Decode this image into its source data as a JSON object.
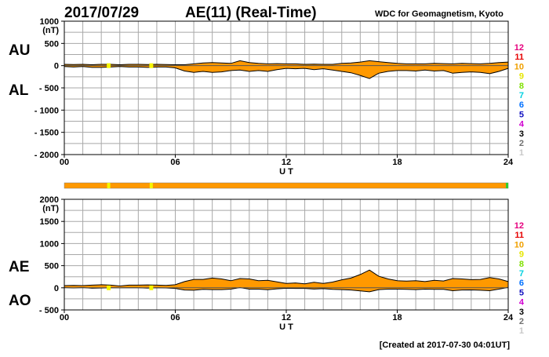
{
  "header": {
    "date": "2017/07/29",
    "title": "AE(11) (Real-Time)",
    "source": "WDC for Geomagnetism, Kyoto",
    "created": "[Created at 2017-07-30 04:01UT]"
  },
  "colors": {
    "fill": "#ff9900",
    "grid": "#a8a8a8",
    "marker_yellow": "#f5f500",
    "marker_green": "#33cc33"
  },
  "legend": {
    "items": [
      {
        "label": "12",
        "color": "#e6007e"
      },
      {
        "label": "11",
        "color": "#e60000"
      },
      {
        "label": "10",
        "color": "#f0a000"
      },
      {
        "label": "9",
        "color": "#e6e600"
      },
      {
        "label": "8",
        "color": "#80e000"
      },
      {
        "label": "7",
        "color": "#00d0e0"
      },
      {
        "label": "6",
        "color": "#0070ff"
      },
      {
        "label": "5",
        "color": "#1010c0"
      },
      {
        "label": "4",
        "color": "#d000d0"
      },
      {
        "label": "3",
        "color": "#000000"
      },
      {
        "label": "2",
        "color": "#707070"
      },
      {
        "label": "1",
        "color": "#c8c8c8"
      }
    ]
  },
  "station_bar": {
    "color": "#ff9900",
    "markers": [
      {
        "hour": 2.4,
        "color": "#f5f500"
      },
      {
        "hour": 4.7,
        "color": "#f5f500"
      },
      {
        "hour": 24.0,
        "color": "#33cc33"
      }
    ]
  },
  "chart_data": [
    {
      "type": "area",
      "name": "AU/AL",
      "unit": "(nT)",
      "xlabel": "U T",
      "xlim": [
        0,
        24
      ],
      "x_ticks": [
        "00",
        "06",
        "12",
        "18",
        "24"
      ],
      "ylim": [
        -2000,
        1000
      ],
      "y_ticks": [
        {
          "v": 1000,
          "label": "1000"
        },
        {
          "v": 500,
          "label": "500"
        },
        {
          "v": 0,
          "label": "0"
        },
        {
          "v": -500,
          "label": "- 500"
        },
        {
          "v": -1000,
          "label": "- 1000"
        },
        {
          "v": -1500,
          "label": "- 1500"
        },
        {
          "v": -2000,
          "label": "- 2000"
        }
      ],
      "label_upper": "AU",
      "label_lower": "AL",
      "grid": true,
      "hours": [
        0,
        0.5,
        1,
        1.5,
        2,
        2.5,
        3,
        3.5,
        4,
        4.5,
        5,
        5.5,
        6,
        6.5,
        7,
        7.5,
        8,
        8.5,
        9,
        9.5,
        10,
        10.5,
        11,
        11.5,
        12,
        12.5,
        13,
        13.5,
        14,
        14.5,
        15,
        15.5,
        16,
        16.5,
        17,
        17.5,
        18,
        18.5,
        19,
        19.5,
        20,
        20.5,
        21,
        21.5,
        22,
        22.5,
        23,
        23.5,
        24
      ],
      "series": [
        {
          "name": "AU",
          "values": [
            30,
            25,
            30,
            20,
            30,
            30,
            20,
            30,
            30,
            25,
            30,
            25,
            20,
            20,
            40,
            60,
            70,
            60,
            50,
            110,
            70,
            50,
            40,
            45,
            40,
            40,
            30,
            35,
            30,
            30,
            50,
            60,
            80,
            110,
            90,
            70,
            50,
            40,
            40,
            40,
            50,
            45,
            40,
            50,
            45,
            40,
            50,
            70,
            80
          ]
        },
        {
          "name": "AL",
          "values": [
            -20,
            -30,
            -20,
            -40,
            -40,
            -30,
            -20,
            -30,
            -30,
            -40,
            -30,
            -30,
            -50,
            -120,
            -150,
            -130,
            -150,
            -140,
            -110,
            -100,
            -130,
            -110,
            -130,
            -90,
            -60,
            -70,
            -60,
            -90,
            -70,
            -100,
            -130,
            -160,
            -220,
            -290,
            -170,
            -130,
            -110,
            -110,
            -120,
            -100,
            -120,
            -110,
            -170,
            -150,
            -140,
            -150,
            -180,
            -130,
            -60
          ]
        }
      ]
    },
    {
      "type": "area",
      "name": "AE/AO",
      "unit": "(nT)",
      "xlabel": "U T",
      "xlim": [
        0,
        24
      ],
      "x_ticks": [
        "00",
        "06",
        "12",
        "18",
        "24"
      ],
      "ylim": [
        -500,
        2000
      ],
      "y_ticks": [
        {
          "v": 2000,
          "label": "2000"
        },
        {
          "v": 1500,
          "label": "1500"
        },
        {
          "v": 1000,
          "label": "1000"
        },
        {
          "v": 500,
          "label": "500"
        },
        {
          "v": 0,
          "label": "0"
        },
        {
          "v": -500,
          "label": "- 500"
        }
      ],
      "label_upper": "AE",
      "label_lower": "AO",
      "grid": true,
      "hours": [
        0,
        0.5,
        1,
        1.5,
        2,
        2.5,
        3,
        3.5,
        4,
        4.5,
        5,
        5.5,
        6,
        6.5,
        7,
        7.5,
        8,
        8.5,
        9,
        9.5,
        10,
        10.5,
        11,
        11.5,
        12,
        12.5,
        13,
        13.5,
        14,
        14.5,
        15,
        15.5,
        16,
        16.5,
        17,
        17.5,
        18,
        18.5,
        19,
        19.5,
        20,
        20.5,
        21,
        21.5,
        22,
        22.5,
        23,
        23.5,
        24
      ],
      "series": [
        {
          "name": "AE",
          "values": [
            50,
            55,
            50,
            60,
            70,
            60,
            40,
            60,
            60,
            65,
            60,
            55,
            70,
            140,
            190,
            190,
            220,
            200,
            160,
            210,
            200,
            160,
            170,
            135,
            100,
            110,
            90,
            125,
            100,
            130,
            180,
            220,
            300,
            400,
            260,
            200,
            160,
            150,
            160,
            140,
            170,
            155,
            210,
            200,
            185,
            190,
            230,
            200,
            140
          ]
        },
        {
          "name": "AO",
          "values": [
            5,
            -3,
            5,
            -10,
            -5,
            0,
            0,
            0,
            0,
            -8,
            0,
            -3,
            -15,
            -50,
            -55,
            -35,
            -40,
            -40,
            -30,
            5,
            -30,
            -30,
            -45,
            -23,
            -10,
            -15,
            -15,
            -28,
            -20,
            -35,
            -40,
            -50,
            -70,
            -90,
            -40,
            -30,
            -30,
            -35,
            -40,
            -30,
            -35,
            -33,
            -65,
            -50,
            -48,
            -55,
            -65,
            -30,
            10
          ]
        }
      ]
    }
  ]
}
